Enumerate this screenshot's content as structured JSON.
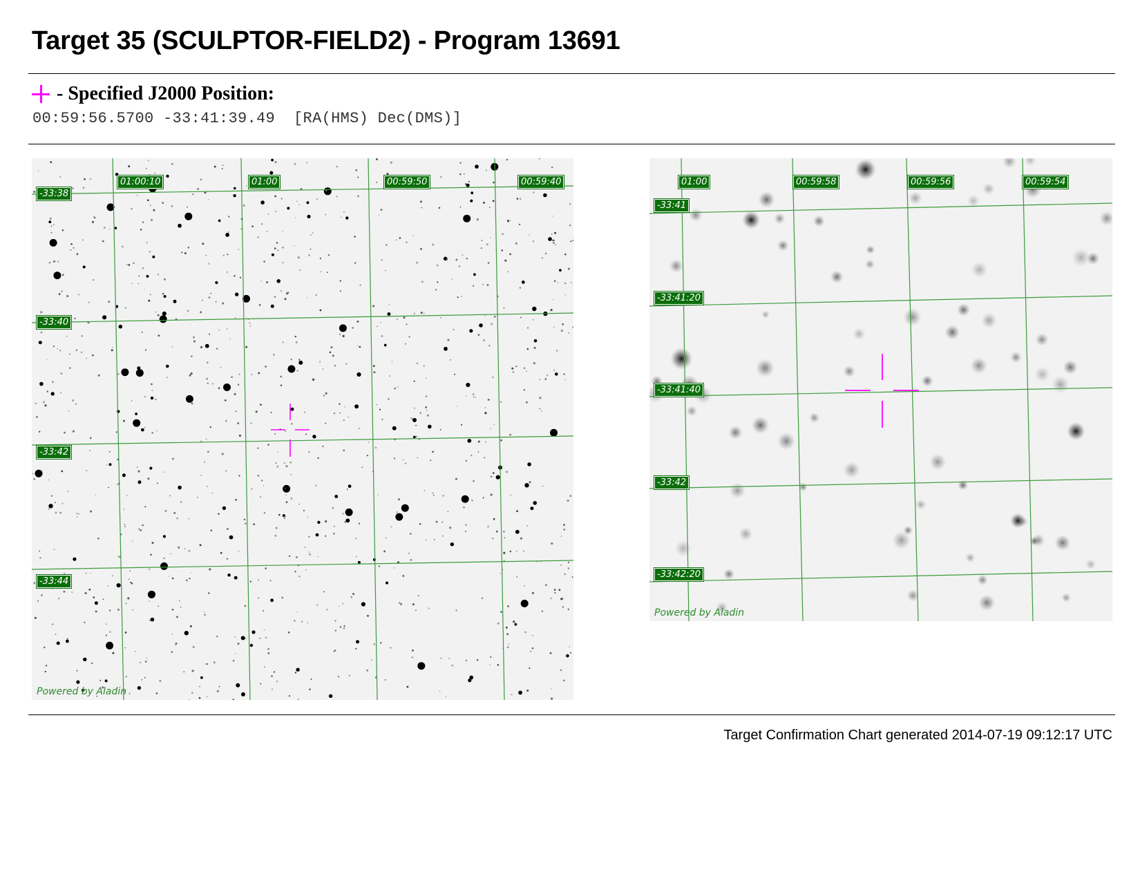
{
  "header": {
    "title": "Target 35 (SCULPTOR-FIELD2) - Program 13691"
  },
  "position": {
    "marker_icon": "magenta-cross-icon",
    "marker_color": "#ff00ff",
    "label": "- Specified J2000 Position:",
    "coordinates": "00:59:56.5700 -33:41:39.49  [RA(HMS) Dec(DMS)]"
  },
  "colors": {
    "grid_line": "#3a9a3a",
    "tag_background": "#0b6e0b",
    "tag_text": "#ffffff",
    "crosshair": "#ff00ff",
    "sky_background": "#f2f2f2"
  },
  "wide_chart": {
    "ra_labels": [
      "01:00:10",
      "01:00",
      "00:59:50",
      "00:59:40"
    ],
    "dec_labels": [
      "-33:38",
      "-33:40",
      "-33:42",
      "-33:44"
    ],
    "credit": "Powered by Aladin"
  },
  "zoom_chart": {
    "ra_labels": [
      "01:00",
      "00:59:58",
      "00:59:56",
      "00:59:54"
    ],
    "dec_labels": [
      "-33:41",
      "-33:41:20",
      "-33:41:40",
      "-33:42",
      "-33:42:20"
    ],
    "credit": "Powered by Aladin"
  },
  "footer": {
    "text": "Target Confirmation Chart generated 2014-07-19 09:12:17 UTC"
  }
}
